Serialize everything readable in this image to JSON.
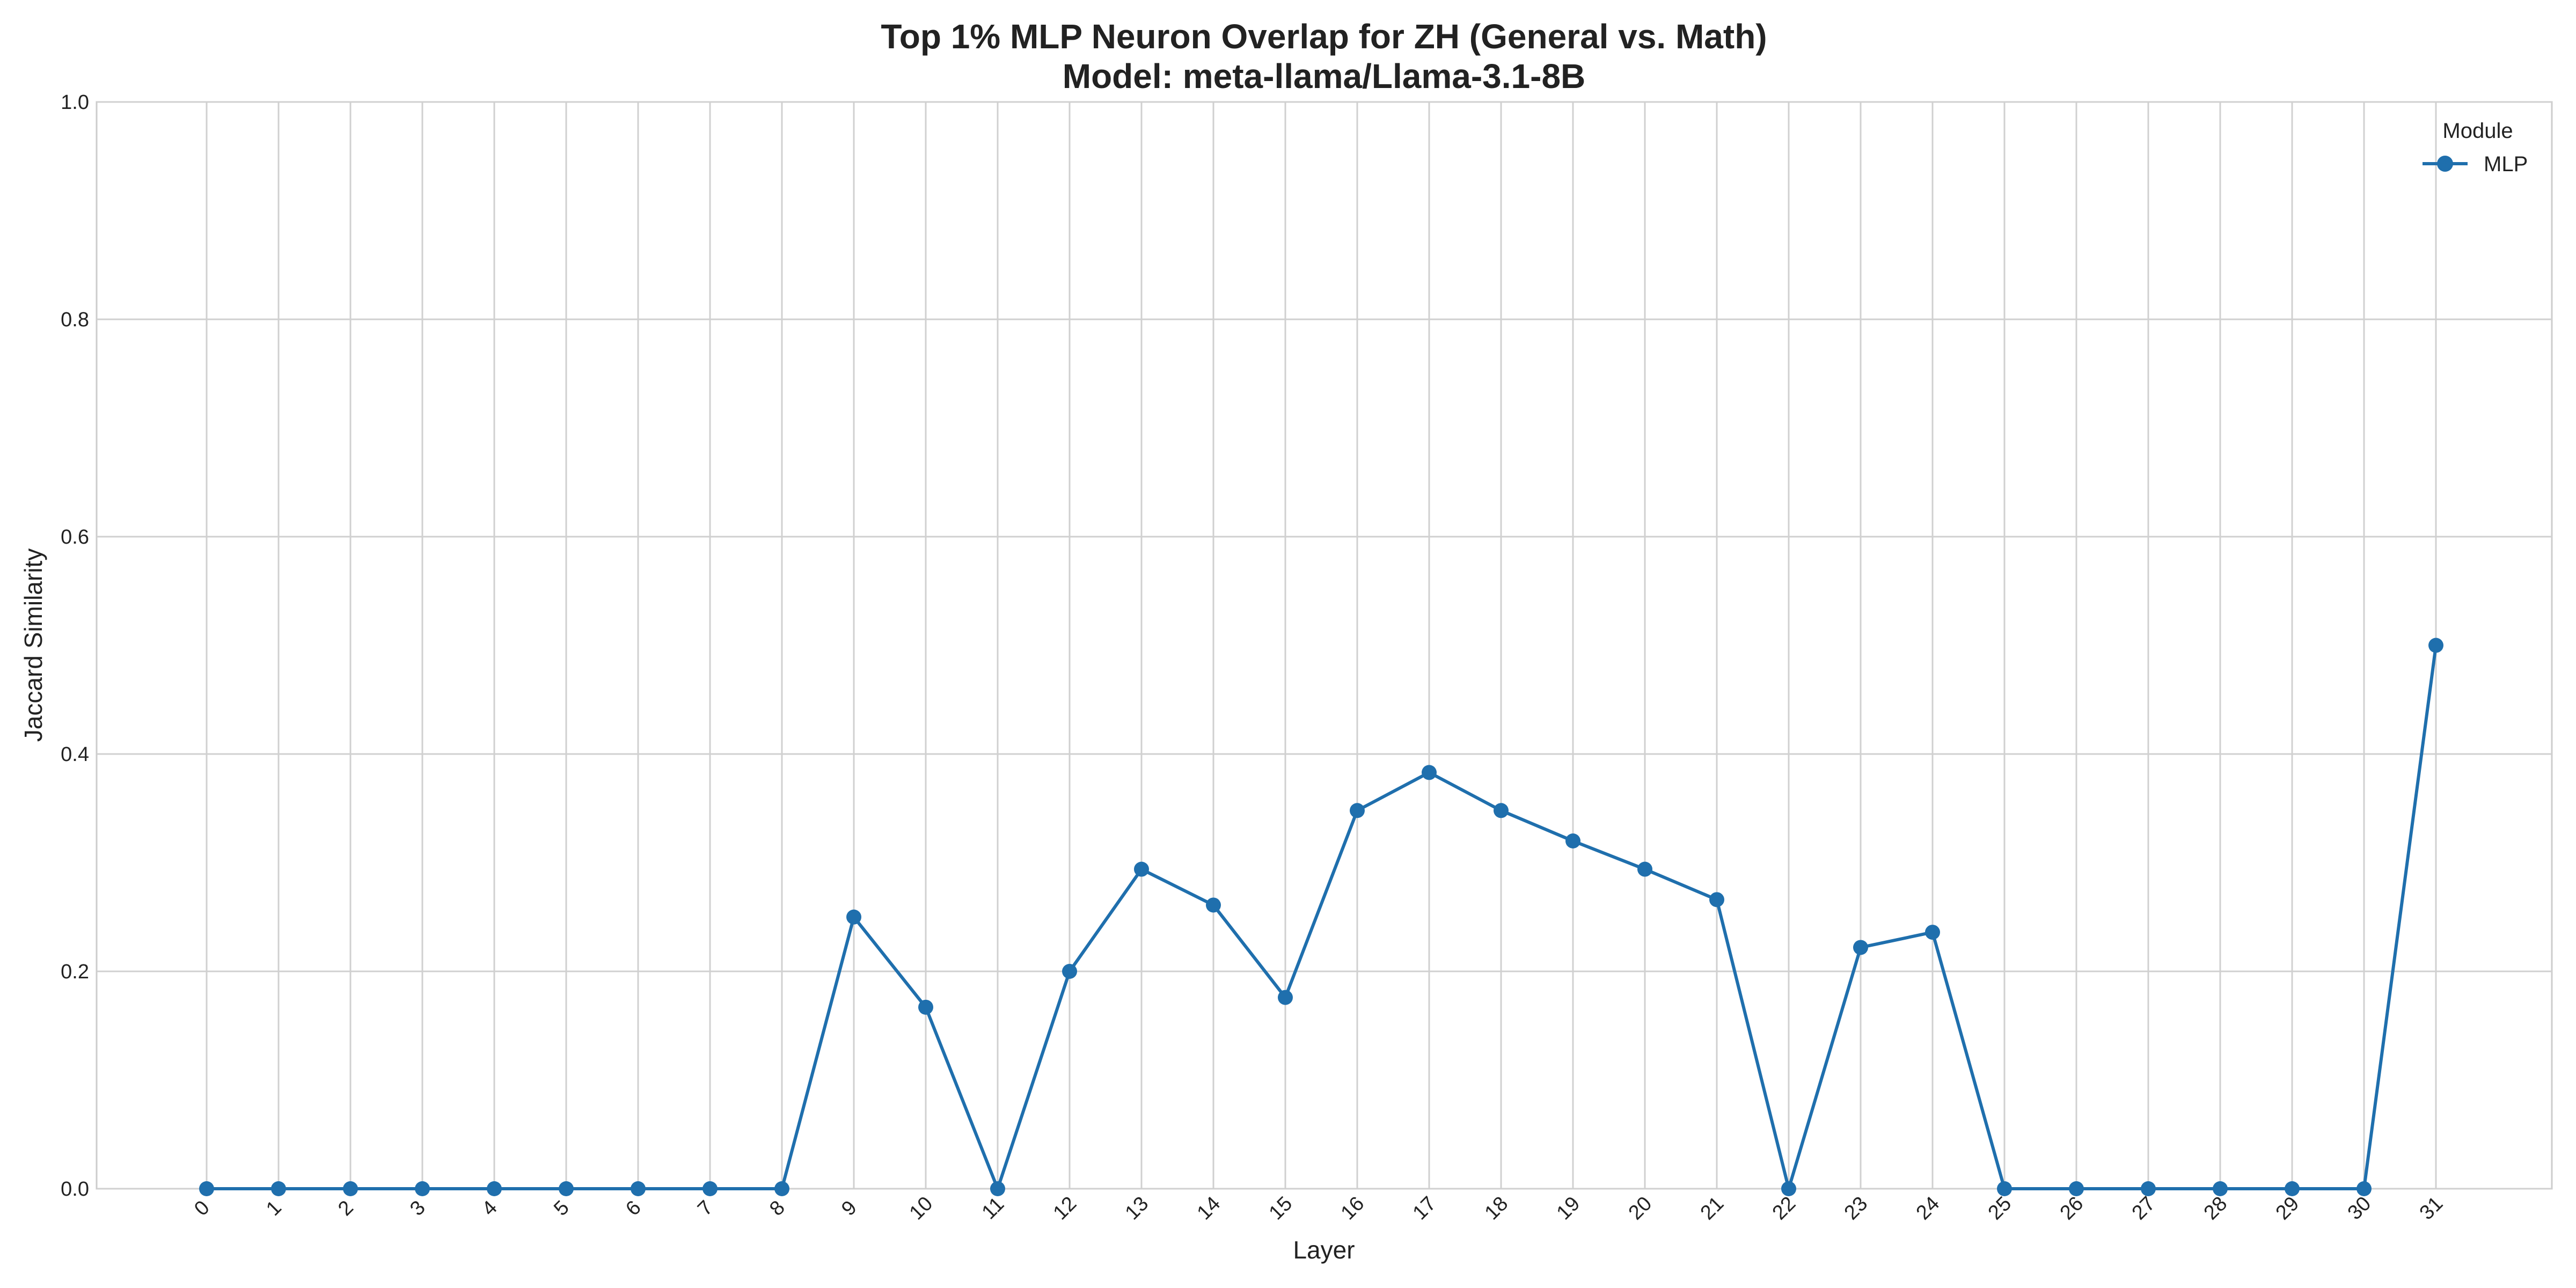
{
  "chart_data": {
    "type": "line",
    "title": "Top 1% MLP Neuron Overlap for ZH (General vs. Math)",
    "subtitle": "Model: meta-llama/Llama-3.1-8B",
    "xlabel": "Layer",
    "ylabel": "Jaccard Similarity",
    "ylim": [
      0,
      1.0
    ],
    "y_ticks": [
      "0.0",
      "0.2",
      "0.4",
      "0.6",
      "0.8",
      "1.0"
    ],
    "categories": [
      "0",
      "1",
      "2",
      "3",
      "4",
      "5",
      "6",
      "7",
      "8",
      "9",
      "10",
      "11",
      "12",
      "13",
      "14",
      "15",
      "16",
      "17",
      "18",
      "19",
      "20",
      "21",
      "22",
      "23",
      "24",
      "25",
      "26",
      "27",
      "28",
      "29",
      "30",
      "31"
    ],
    "grid": true,
    "legend": {
      "title": "Module",
      "placement": "top-right"
    },
    "series": [
      {
        "name": "MLP",
        "color": "#1f6fad",
        "marker": "circle",
        "values": [
          0,
          0,
          0,
          0,
          0,
          0,
          0,
          0,
          0,
          0.25,
          0.167,
          0,
          0.2,
          0.294,
          0.261,
          0.176,
          0.348,
          0.383,
          0.348,
          0.32,
          0.294,
          0.266,
          0,
          0.222,
          0.236,
          0,
          0,
          0,
          0,
          0,
          0,
          0.5
        ]
      }
    ]
  }
}
